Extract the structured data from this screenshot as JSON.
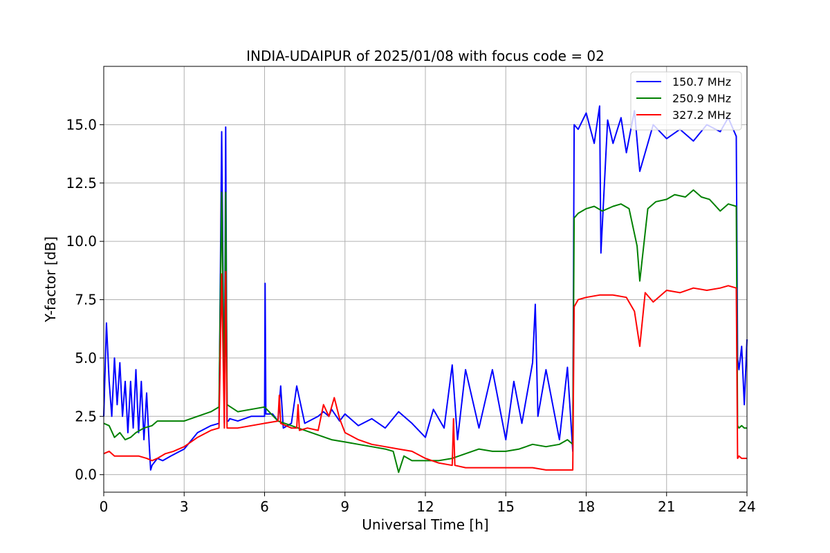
{
  "chart_data": {
    "type": "line",
    "title": "INDIA-UDAIPUR of 2025/01/08 with focus code = 02",
    "xlabel": "Universal Time [h]",
    "ylabel": "Y-factor [dB]",
    "xlim": [
      0,
      24
    ],
    "ylim": [
      -0.75,
      17.5
    ],
    "xticks": [
      0,
      3,
      6,
      9,
      12,
      15,
      18,
      21,
      24
    ],
    "xtick_labels": [
      "0",
      "3",
      "6",
      "9",
      "12",
      "15",
      "18",
      "21",
      "24"
    ],
    "yticks": [
      0,
      2.5,
      5,
      7.5,
      10,
      12.5,
      15
    ],
    "ytick_labels": [
      "0.0",
      "2.5",
      "5.0",
      "7.5",
      "10.0",
      "12.5",
      "15.0"
    ],
    "grid": true,
    "legend_position": "top-right",
    "series": [
      {
        "name": "150.7 MHz",
        "color": "#0000ff",
        "x": [
          0,
          0.1,
          0.2,
          0.3,
          0.4,
          0.5,
          0.6,
          0.7,
          0.8,
          0.9,
          1.0,
          1.1,
          1.2,
          1.3,
          1.4,
          1.5,
          1.6,
          1.7,
          1.75,
          1.8,
          2.0,
          2.2,
          2.5,
          3.0,
          3.5,
          4.0,
          4.3,
          4.4,
          4.5,
          4.55,
          4.6,
          4.65,
          4.7,
          5.0,
          5.5,
          6.0,
          6.02,
          6.05,
          6.3,
          6.5,
          6.6,
          6.7,
          7.0,
          7.2,
          7.5,
          8.0,
          8.2,
          8.4,
          8.5,
          8.8,
          9.0,
          9.5,
          10.0,
          10.5,
          11.0,
          11.5,
          12.0,
          12.3,
          12.7,
          13.0,
          13.2,
          13.5,
          14.0,
          14.5,
          15.0,
          15.3,
          15.6,
          16.0,
          16.1,
          16.2,
          16.5,
          17.0,
          17.3,
          17.5,
          17.55,
          17.7,
          18.0,
          18.3,
          18.5,
          18.55,
          18.8,
          19.0,
          19.3,
          19.5,
          19.8,
          20.0,
          20.5,
          21.0,
          21.5,
          22.0,
          22.5,
          23.0,
          23.3,
          23.6,
          23.65,
          23.7,
          23.8,
          23.9,
          24.0
        ],
        "y": [
          2.5,
          6.5,
          4.0,
          2.5,
          5.0,
          3.0,
          4.8,
          2.5,
          4.0,
          1.8,
          4.0,
          2.0,
          4.5,
          1.8,
          4.0,
          1.5,
          3.5,
          1.2,
          0.2,
          0.4,
          0.7,
          0.6,
          0.8,
          1.1,
          1.8,
          2.1,
          2.2,
          14.7,
          2.2,
          14.9,
          2.3,
          2.3,
          2.4,
          2.3,
          2.5,
          2.5,
          8.2,
          2.6,
          2.6,
          2.3,
          3.8,
          2.0,
          2.2,
          3.8,
          2.2,
          2.5,
          2.7,
          2.5,
          2.8,
          2.3,
          2.6,
          2.1,
          2.4,
          2.0,
          2.7,
          2.2,
          1.6,
          2.8,
          2.0,
          4.7,
          1.5,
          4.5,
          2.0,
          4.5,
          1.5,
          4.0,
          2.2,
          4.8,
          7.3,
          2.5,
          4.5,
          1.5,
          4.6,
          1.0,
          15.0,
          14.8,
          15.5,
          14.2,
          15.8,
          9.5,
          15.2,
          14.2,
          15.3,
          13.8,
          15.6,
          13.0,
          15.0,
          14.4,
          14.8,
          14.3,
          15.0,
          14.7,
          15.3,
          14.5,
          5.0,
          4.5,
          5.5,
          3.0,
          5.8
        ]
      },
      {
        "name": "250.9 MHz",
        "color": "#008000",
        "x": [
          0,
          0.2,
          0.4,
          0.6,
          0.8,
          1.0,
          1.2,
          1.5,
          1.8,
          2.0,
          2.5,
          3.0,
          3.5,
          4.0,
          4.3,
          4.4,
          4.5,
          4.55,
          4.6,
          5.0,
          5.5,
          6.0,
          6.5,
          7.0,
          7.5,
          8.0,
          8.5,
          9.0,
          9.5,
          10.0,
          10.5,
          10.8,
          11.0,
          11.2,
          11.5,
          12.0,
          12.5,
          13.0,
          13.5,
          14.0,
          14.5,
          15.0,
          15.5,
          16.0,
          16.5,
          17.0,
          17.3,
          17.5,
          17.55,
          17.7,
          18.0,
          18.3,
          18.6,
          19.0,
          19.3,
          19.6,
          19.9,
          20.0,
          20.3,
          20.6,
          21.0,
          21.3,
          21.7,
          22.0,
          22.3,
          22.6,
          23.0,
          23.3,
          23.6,
          23.65,
          23.7,
          23.8,
          23.9,
          24.0
        ],
        "y": [
          2.2,
          2.1,
          1.6,
          1.8,
          1.5,
          1.6,
          1.8,
          2.0,
          2.1,
          2.3,
          2.3,
          2.3,
          2.5,
          2.7,
          2.9,
          12.1,
          2.9,
          12.1,
          3.0,
          2.7,
          2.8,
          2.9,
          2.3,
          2.1,
          1.9,
          1.7,
          1.5,
          1.4,
          1.3,
          1.2,
          1.1,
          1.0,
          0.1,
          0.8,
          0.6,
          0.6,
          0.6,
          0.7,
          0.9,
          1.1,
          1.0,
          1.0,
          1.1,
          1.3,
          1.2,
          1.3,
          1.5,
          1.3,
          11.0,
          11.2,
          11.4,
          11.5,
          11.3,
          11.5,
          11.6,
          11.4,
          9.8,
          8.3,
          11.4,
          11.7,
          11.8,
          12.0,
          11.9,
          12.2,
          11.9,
          11.8,
          11.3,
          11.6,
          11.5,
          2.1,
          2.0,
          2.1,
          2.0,
          2.0
        ]
      },
      {
        "name": "327.2 MHz",
        "color": "#ff0000",
        "x": [
          0,
          0.2,
          0.4,
          0.6,
          0.8,
          1.0,
          1.3,
          1.6,
          1.8,
          2.0,
          2.3,
          2.6,
          3.0,
          3.5,
          4.0,
          4.3,
          4.4,
          4.5,
          4.55,
          4.6,
          5.0,
          5.5,
          6.0,
          6.5,
          6.55,
          6.6,
          7.0,
          7.2,
          7.25,
          7.3,
          7.6,
          8.0,
          8.2,
          8.4,
          8.6,
          8.8,
          9.0,
          9.5,
          10.0,
          10.5,
          11.0,
          11.5,
          12.0,
          12.5,
          13.0,
          13.05,
          13.1,
          13.5,
          14.0,
          14.5,
          15.0,
          15.5,
          16.0,
          16.5,
          17.0,
          17.3,
          17.5,
          17.55,
          17.7,
          18.0,
          18.5,
          19.0,
          19.5,
          19.8,
          20.0,
          20.2,
          20.5,
          21.0,
          21.5,
          22.0,
          22.5,
          23.0,
          23.3,
          23.6,
          23.65,
          23.7,
          23.8,
          23.9,
          24.0
        ],
        "y": [
          0.9,
          1.0,
          0.8,
          0.8,
          0.8,
          0.8,
          0.8,
          0.7,
          0.6,
          0.7,
          0.9,
          1.0,
          1.2,
          1.6,
          1.9,
          2.0,
          8.6,
          2.0,
          8.7,
          2.0,
          2.0,
          2.1,
          2.2,
          2.3,
          3.4,
          2.2,
          2.0,
          2.0,
          3.0,
          1.9,
          2.0,
          1.9,
          3.0,
          2.5,
          3.3,
          2.4,
          1.8,
          1.5,
          1.3,
          1.2,
          1.1,
          1.0,
          0.7,
          0.5,
          0.4,
          2.4,
          0.4,
          0.3,
          0.3,
          0.3,
          0.3,
          0.3,
          0.3,
          0.2,
          0.2,
          0.2,
          0.2,
          7.2,
          7.5,
          7.6,
          7.7,
          7.7,
          7.6,
          7.0,
          5.5,
          7.8,
          7.4,
          7.9,
          7.8,
          8.0,
          7.9,
          8.0,
          8.1,
          8.0,
          0.7,
          0.8,
          0.7,
          0.7,
          0.7
        ]
      }
    ]
  }
}
